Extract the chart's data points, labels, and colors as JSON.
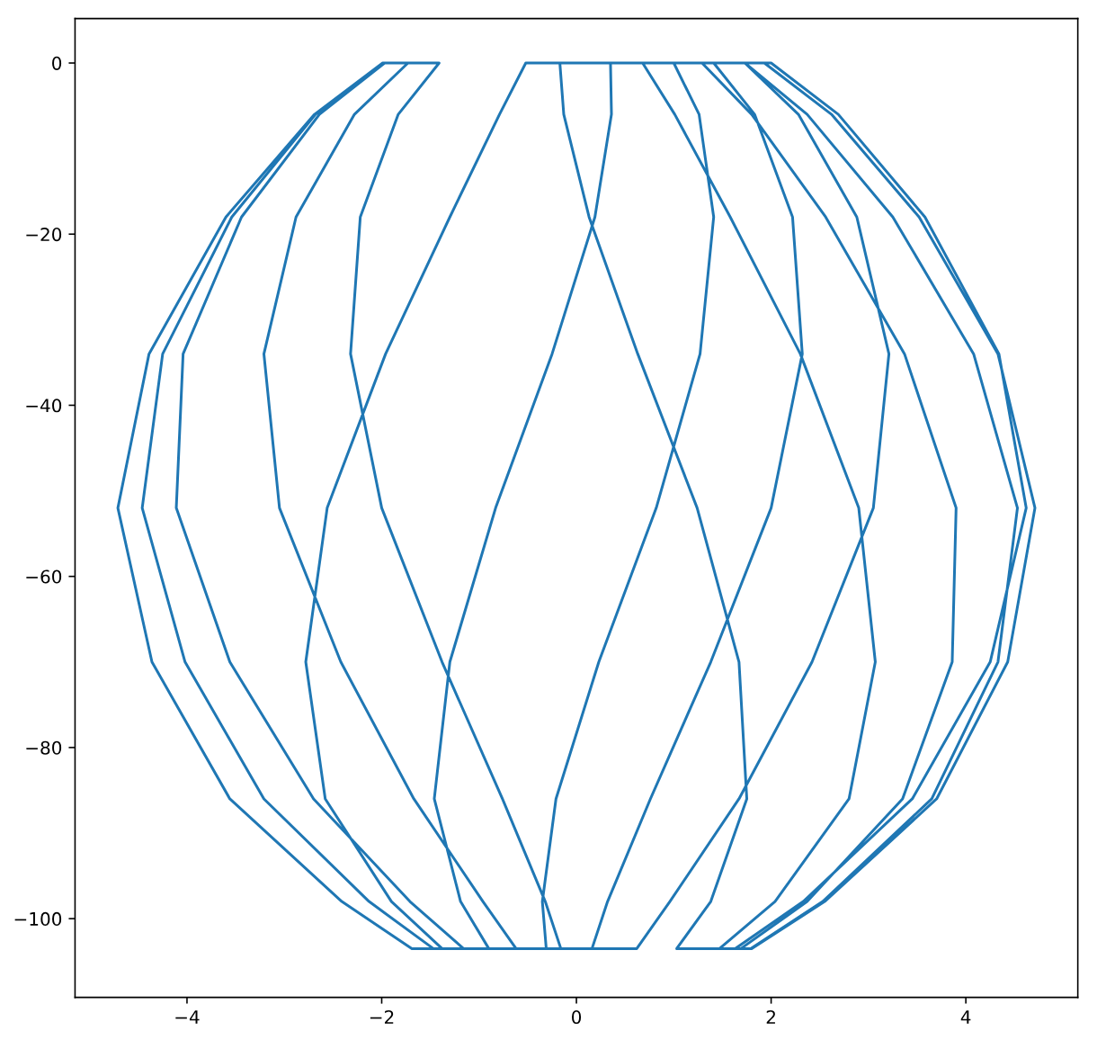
{
  "chart_data": {
    "type": "line",
    "x": [
      -1.97,
      -2.64,
      -3.44,
      -4.04,
      -4.11,
      -3.56,
      -2.7,
      -1.71,
      -1.16,
      -0.31,
      -0.35,
      -0.21,
      0.23,
      0.82,
      1.27,
      1.41,
      1.26,
      1.0,
      1.73,
      2.37,
      3.25,
      4.08,
      4.53,
      4.33,
      3.65,
      2.53,
      1.79,
      1.69,
      2.37,
      3.35,
      3.86,
      3.9,
      3.37,
      2.56,
      1.8,
      1.29,
      0.35,
      0.36,
      0.19,
      -0.25,
      -0.83,
      -1.3,
      -1.46,
      -1.19,
      -0.9,
      -1.47,
      -2.13,
      -3.21,
      -4.02,
      -4.46,
      -4.25,
      -3.54,
      -2.68,
      -1.99,
      -1.73,
      -2.28,
      -2.88,
      -3.21,
      -3.05,
      -2.42,
      -1.67,
      -0.96,
      -0.62,
      0.16,
      0.32,
      0.76,
      1.38,
      2.0,
      2.32,
      2.22,
      1.83,
      1.41,
      1.93,
      2.62,
      3.52,
      4.33,
      4.71,
      4.43,
      3.7,
      2.55,
      1.8,
      1.47,
      2.04,
      2.8,
      3.07,
      2.9,
      2.3,
      1.58,
      1.01,
      0.68,
      -0.52,
      -0.79,
      -1.3,
      -1.96,
      -2.56,
      -2.78,
      -2.58,
      -1.9,
      -1.38,
      -1.69,
      -2.41,
      -3.56,
      -4.36,
      -4.71,
      -4.39,
      -3.6,
      -2.69,
      -1.99,
      -1.41,
      -1.83,
      -2.22,
      -2.32,
      -2.0,
      -1.38,
      -0.76,
      -0.32,
      -0.16,
      0.62,
      0.96,
      1.67,
      2.42,
      3.05,
      3.21,
      2.88,
      2.28,
      1.73,
      2.0,
      2.69,
      3.58,
      4.34,
      4.62,
      4.25,
      3.45,
      2.33,
      1.63,
      1.03,
      1.38,
      1.75,
      1.67,
      1.24,
      0.63,
      0.13,
      -0.13,
      -0.17
    ],
    "values": [
      0,
      -6,
      -18,
      -34,
      -52,
      -70,
      -86,
      -98,
      -103.5,
      -103.5,
      -98,
      -86,
      -70,
      -52,
      -34,
      -18,
      -6,
      0,
      0,
      -6,
      -18,
      -34,
      -52,
      -70,
      -86,
      -98,
      -103.5,
      -103.5,
      -98,
      -86,
      -70,
      -52,
      -34,
      -18,
      -6,
      0,
      0,
      -6,
      -18,
      -34,
      -52,
      -70,
      -86,
      -98,
      -103.5,
      -103.5,
      -98,
      -86,
      -70,
      -52,
      -34,
      -18,
      -6,
      0,
      0,
      -6,
      -18,
      -34,
      -52,
      -70,
      -86,
      -98,
      -103.5,
      -103.5,
      -98,
      -86,
      -70,
      -52,
      -34,
      -18,
      -6,
      0,
      0,
      -6,
      -18,
      -34,
      -52,
      -70,
      -86,
      -98,
      -103.5,
      -103.5,
      -98,
      -86,
      -70,
      -52,
      -34,
      -18,
      -6,
      0,
      0,
      -6,
      -18,
      -34,
      -52,
      -70,
      -86,
      -98,
      -103.5,
      -103.5,
      -98,
      -86,
      -70,
      -52,
      -34,
      -18,
      -6,
      0,
      0,
      -6,
      -18,
      -34,
      -52,
      -70,
      -86,
      -98,
      -103.5,
      -103.5,
      -98,
      -86,
      -70,
      -52,
      -34,
      -18,
      -6,
      0,
      0,
      -6,
      -18,
      -34,
      -52,
      -70,
      -86,
      -98,
      -103.5,
      -103.5,
      -98,
      -86,
      -70,
      -52,
      -34,
      -18,
      -6,
      0
    ],
    "color": "#1f77b4",
    "xlim": [
      -5.15,
      5.15
    ],
    "ylim": [
      -109.2,
      5.2
    ],
    "xticks": [
      -4,
      -2,
      0,
      2,
      4
    ],
    "yticks": [
      -100,
      -80,
      -60,
      -40,
      -20,
      0
    ],
    "grid": false,
    "marker": "none",
    "line_style": "solid"
  }
}
